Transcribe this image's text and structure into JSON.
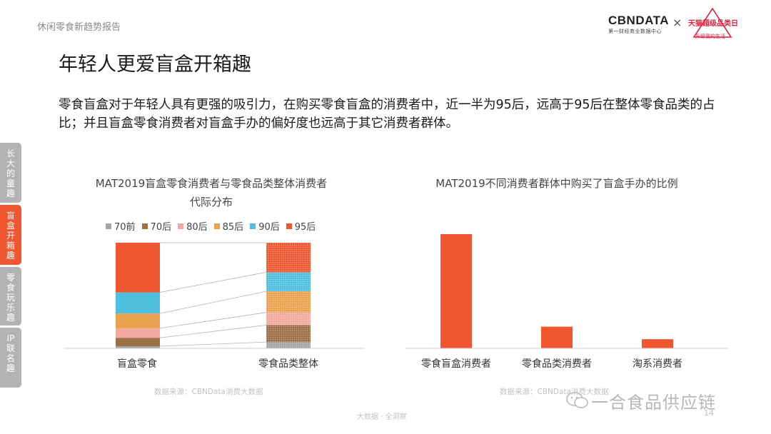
{
  "header": {
    "report_title": "休闲零食新趋势报告",
    "logo_cbn_main": "CBNDATA",
    "logo_cbn_sub": "第一财经商业数据中心",
    "logo_separator": "×",
    "logo_tmall_main": "天猫超级品类日",
    "logo_tmall_sub": "升级我的生活"
  },
  "page": {
    "title": "年轻人更爱盲盒开箱趣",
    "description": "零食盲盒对于年轻人具有更强的吸引力，在购买零食盲盒的消费者中，近一半为95后，远高于95后在整体零食品类的占比；并且盲盒零食消费者对盲盒手办的偏好度也远高于其它消费者群体。"
  },
  "side_tabs": [
    {
      "label": "长大的童趣",
      "active": false
    },
    {
      "label": "盲盒开箱趣",
      "active": true
    },
    {
      "label": "零食玩乐趣",
      "active": false
    },
    {
      "label": "IP联名趣",
      "active": false
    }
  ],
  "colors": {
    "accent": "#f0562f",
    "tab_inactive": "#b3b3b3",
    "s70前": "#a5a5a5",
    "s70后": "#9c6f45",
    "s80后": "#f4a9a0",
    "s85后": "#eba24f",
    "s90后": "#4fbfdf",
    "s95后": "#f0562f"
  },
  "chart_data": [
    {
      "type": "bar",
      "stacked": true,
      "percent": true,
      "title": "MAT2019盲盒零食消费者与零食品类整体消费者代际分布",
      "title_lines": [
        "MAT2019盲盒零食消费者与零食品类整体消费者",
        "代际分布"
      ],
      "categories": [
        "盲盒零食",
        "零食品类整体"
      ],
      "series": [
        {
          "name": "70前",
          "values": [
            2,
            6
          ],
          "color": "#a5a5a5"
        },
        {
          "name": "70后",
          "values": [
            8,
            16
          ],
          "color": "#9c6f45"
        },
        {
          "name": "80后",
          "values": [
            9,
            12
          ],
          "color": "#f4a9a0"
        },
        {
          "name": "85后",
          "values": [
            14,
            20
          ],
          "color": "#eba24f"
        },
        {
          "name": "90后",
          "values": [
            20,
            18
          ],
          "color": "#4fbfdf"
        },
        {
          "name": "95后",
          "values": [
            47,
            28
          ],
          "color": "#f0562f"
        }
      ],
      "ylim": [
        0,
        100
      ],
      "legend_position": "top",
      "grid": false,
      "connector_lines": true
    },
    {
      "type": "bar",
      "title": "MAT2019不同消费者群体中购买了盲盒手办的比例",
      "title_lines": [
        "MAT2019不同消费者群体中购买了盲盒手办的比例"
      ],
      "categories": [
        "零食盲盒消费者",
        "零食品类消费者",
        "淘系消费者"
      ],
      "values": [
        100,
        19,
        8
      ],
      "color": "#f0562f",
      "ylim": [
        0,
        100
      ],
      "grid": false
    }
  ],
  "sources": [
    "数据来源：CBNData消费大数据",
    "数据来源：CBNData消费大数据"
  ],
  "footer": {
    "text": "大数据 · 全洞察",
    "page_number": "14"
  },
  "watermark": "一合食品供应链"
}
